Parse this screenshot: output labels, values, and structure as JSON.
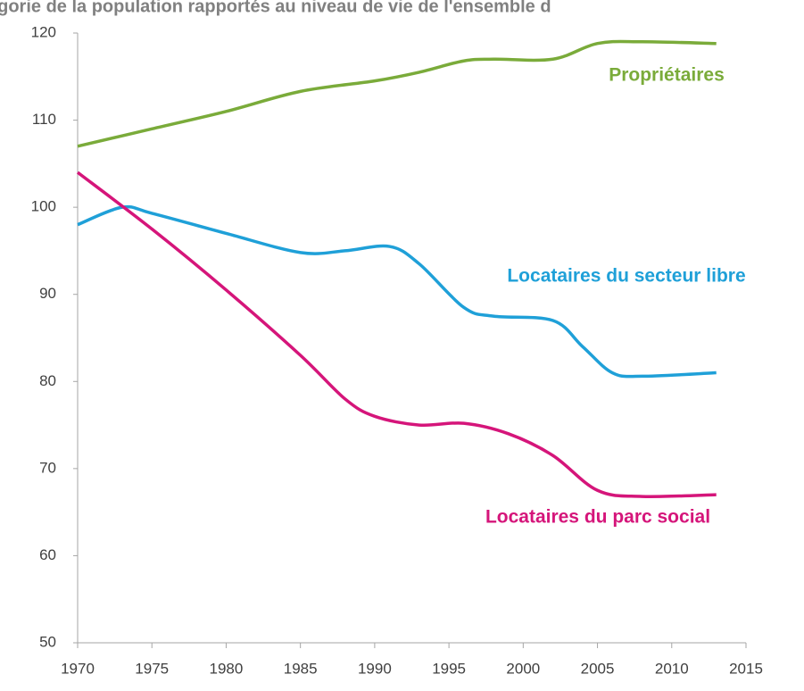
{
  "chart_data": {
    "type": "line",
    "title": "égorie de la population rapportés au niveau de vie de l'ensemble d",
    "series": [
      {
        "name": "Propriétaires",
        "color": "#7aab3a",
        "x": [
          1970,
          1975,
          1980,
          1985,
          1990,
          1993,
          1996,
          1998,
          2002,
          2005,
          2008,
          2013
        ],
        "values": [
          107,
          109,
          111,
          113.3,
          114.5,
          115.5,
          116.8,
          117,
          117,
          118.8,
          119,
          118.8
        ]
      },
      {
        "name": "Locataires du secteur libre",
        "color": "#1fa0d8",
        "x": [
          1970,
          1973,
          1975,
          1980,
          1985,
          1988,
          1991,
          1993,
          1996,
          1998,
          2002,
          2004,
          2006,
          2008,
          2013
        ],
        "values": [
          98,
          100,
          99.3,
          97,
          94.8,
          95,
          95.5,
          93.5,
          88.5,
          87.5,
          87,
          84,
          81,
          80.6,
          81
        ]
      },
      {
        "name": "Locataires du parc social",
        "color": "#d5157a",
        "x": [
          1970,
          1975,
          1980,
          1985,
          1988,
          1990,
          1993,
          1996,
          1999,
          2002,
          2005,
          2008,
          2013
        ],
        "values": [
          104,
          97.5,
          90.5,
          83,
          78,
          76,
          75,
          75.2,
          74,
          71.5,
          67.5,
          66.8,
          67
        ]
      }
    ],
    "xlim": [
      1970,
      2015
    ],
    "xticks": [
      1970,
      1975,
      1980,
      1985,
      1990,
      1995,
      2000,
      2005,
      2010,
      2015
    ],
    "ylim": [
      50,
      120
    ],
    "yticks": [
      50,
      60,
      70,
      80,
      90,
      100,
      110,
      120
    ]
  }
}
